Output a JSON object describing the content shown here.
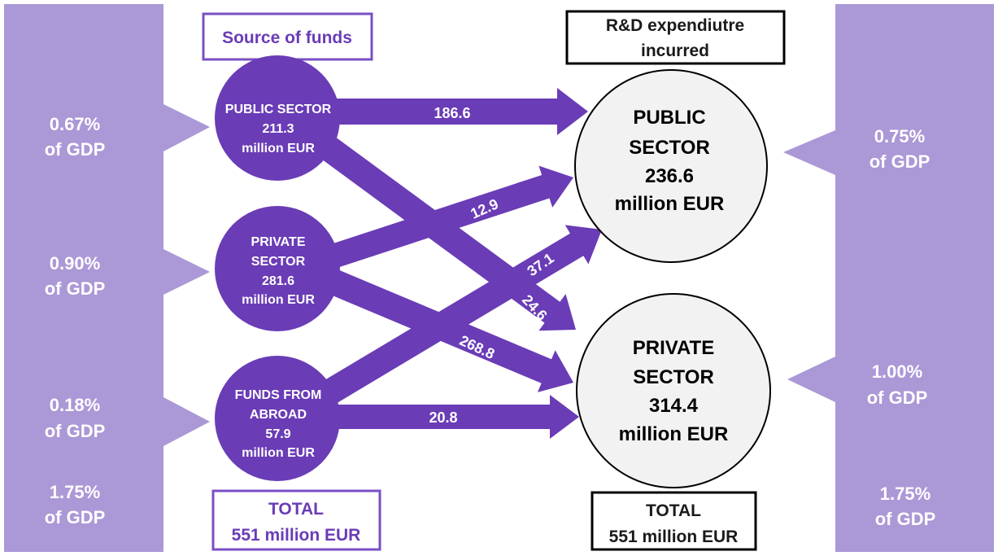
{
  "colors": {
    "side_panel": "#ab98d6",
    "node_fill": "#6a3cb6",
    "arrow_fill": "#6a3cb6",
    "target_fill": "#f2f2f2",
    "purple_border": "#7a4fc4",
    "dark_border": "#000000"
  },
  "headers": {
    "source": "Source of funds",
    "expenditure_line1": "R&D expendiutre",
    "expenditure_line2": "incurred"
  },
  "left_gdp": [
    {
      "pct": "0.67%",
      "label": "of GDP"
    },
    {
      "pct": "0.90%",
      "label": "of GDP"
    },
    {
      "pct": "0.18%",
      "label": "of GDP"
    },
    {
      "pct": "1.75%",
      "label": "of GDP"
    }
  ],
  "right_gdp": [
    {
      "pct": "0.75%",
      "label": "of GDP"
    },
    {
      "pct": "1.00%",
      "label": "of GDP"
    },
    {
      "pct": "1.75%",
      "label": "of GDP"
    }
  ],
  "sources": [
    {
      "lines": [
        "PUBLIC SECTOR",
        "211.3",
        "million EUR"
      ]
    },
    {
      "lines": [
        "PRIVATE",
        "SECTOR",
        "281.6",
        "million EUR"
      ]
    },
    {
      "lines": [
        "FUNDS FROM",
        "ABROAD",
        "57.9",
        "million EUR"
      ]
    }
  ],
  "targets": [
    {
      "lines": [
        "PUBLIC",
        "SECTOR",
        "236.6",
        "million EUR"
      ]
    },
    {
      "lines": [
        "PRIVATE",
        "SECTOR",
        "314.4",
        "million EUR"
      ]
    }
  ],
  "flows": [
    {
      "from": "PUBLIC SECTOR",
      "to": "PUBLIC SECTOR",
      "value": "186.6"
    },
    {
      "from": "PUBLIC SECTOR",
      "to": "PRIVATE SECTOR",
      "value": "24.6"
    },
    {
      "from": "PRIVATE SECTOR",
      "to": "PUBLIC SECTOR",
      "value": "12.9"
    },
    {
      "from": "PRIVATE SECTOR",
      "to": "PRIVATE SECTOR",
      "value": "268.8"
    },
    {
      "from": "FUNDS FROM ABROAD",
      "to": "PUBLIC SECTOR",
      "value": "37.1"
    },
    {
      "from": "FUNDS FROM ABROAD",
      "to": "PRIVATE SECTOR",
      "value": "20.8"
    }
  ],
  "totals": {
    "left_line1": "TOTAL",
    "left_line2": "551 million EUR",
    "right_line1": "TOTAL",
    "right_line2": "551 million EUR"
  }
}
